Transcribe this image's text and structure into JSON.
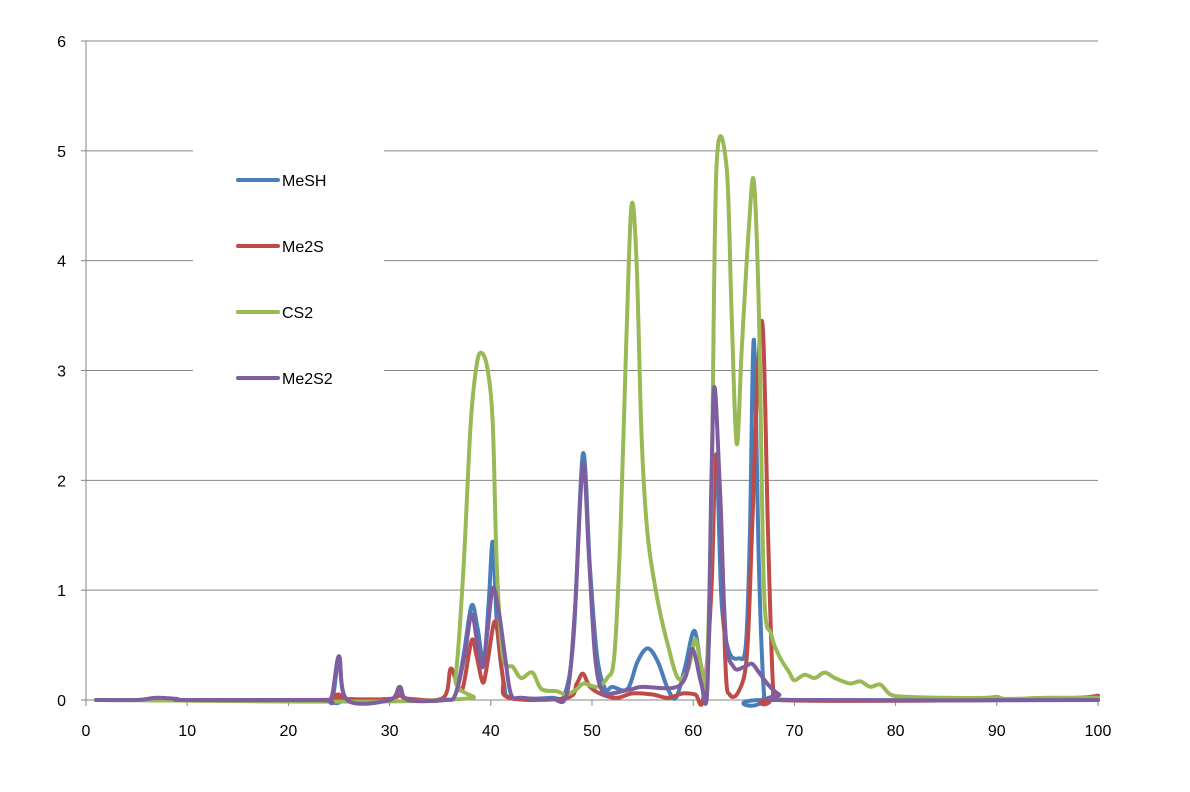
{
  "chart_data": {
    "type": "line",
    "title": "",
    "xlabel": "",
    "ylabel": "",
    "xlim": [
      0,
      100
    ],
    "ylim": [
      0,
      6
    ],
    "x_ticks": [
      0,
      10,
      20,
      30,
      40,
      50,
      60,
      70,
      80,
      90,
      100
    ],
    "y_ticks": [
      0,
      1,
      2,
      3,
      4,
      5,
      6
    ],
    "grid": "horizontal",
    "legend_position": "upper-left inside plot",
    "series": [
      {
        "name": "MeSH",
        "color": "#4a7ebb",
        "points": [
          [
            1,
            0
          ],
          [
            23,
            0
          ],
          [
            24.3,
            0
          ],
          [
            25,
            0.38
          ],
          [
            25.8,
            0
          ],
          [
            30,
            0
          ],
          [
            31,
            0.1
          ],
          [
            31.7,
            0
          ],
          [
            35.5,
            0
          ],
          [
            36.5,
            0.05
          ],
          [
            37.3,
            0.4
          ],
          [
            38.1,
            0.86
          ],
          [
            38.7,
            0.65
          ],
          [
            39.3,
            0.35
          ],
          [
            39.8,
            0.9
          ],
          [
            40.2,
            1.44
          ],
          [
            40.6,
            0.7
          ],
          [
            41.3,
            0.15
          ],
          [
            42,
            0.02
          ],
          [
            46,
            0.02
          ],
          [
            47.3,
            0.05
          ],
          [
            48.2,
            0.6
          ],
          [
            49.1,
            2.24
          ],
          [
            49.8,
            1.2
          ],
          [
            50.5,
            0.4
          ],
          [
            51.3,
            0.1
          ],
          [
            52,
            0.12
          ],
          [
            53.5,
            0.1
          ],
          [
            54.5,
            0.35
          ],
          [
            55.5,
            0.47
          ],
          [
            56.5,
            0.35
          ],
          [
            57.5,
            0.1
          ],
          [
            58.3,
            0.02
          ],
          [
            59.2,
            0.3
          ],
          [
            60.1,
            0.63
          ],
          [
            60.8,
            0.3
          ],
          [
            61.4,
            0.2
          ],
          [
            62.2,
            2.22
          ],
          [
            62.8,
            0.9
          ],
          [
            63.5,
            0.45
          ],
          [
            64.5,
            0.38
          ],
          [
            65.2,
            0.5
          ],
          [
            65.6,
            1.5
          ],
          [
            66,
            3.28
          ],
          [
            66.5,
            1.2
          ],
          [
            67,
            0.05
          ],
          [
            67.5,
            0
          ],
          [
            100,
            0
          ]
        ]
      },
      {
        "name": "Me2S",
        "color": "#be4b48",
        "points": [
          [
            1,
            0
          ],
          [
            23,
            0
          ],
          [
            24.3,
            0.03
          ],
          [
            25,
            0.05
          ],
          [
            25.8,
            0.01
          ],
          [
            30,
            0.01
          ],
          [
            31,
            0.04
          ],
          [
            32,
            0.01
          ],
          [
            35.3,
            0.02
          ],
          [
            36,
            0.28
          ],
          [
            36.5,
            0.2
          ],
          [
            37.2,
            0.1
          ],
          [
            38.1,
            0.54
          ],
          [
            38.6,
            0.4
          ],
          [
            39.2,
            0.16
          ],
          [
            39.6,
            0.3
          ],
          [
            40.3,
            0.7
          ],
          [
            40.7,
            0.6
          ],
          [
            41.2,
            0.2
          ],
          [
            41.8,
            0.02
          ],
          [
            47.5,
            0.02
          ],
          [
            48.5,
            0.15
          ],
          [
            49.1,
            0.24
          ],
          [
            49.8,
            0.12
          ],
          [
            51,
            0.05
          ],
          [
            52.5,
            0.02
          ],
          [
            54,
            0.06
          ],
          [
            56,
            0.05
          ],
          [
            57.5,
            0.02
          ],
          [
            59,
            0.06
          ],
          [
            60.2,
            0.05
          ],
          [
            61,
            0.02
          ],
          [
            61.8,
            1.0
          ],
          [
            62.2,
            2.2
          ],
          [
            62.7,
            1.8
          ],
          [
            63.2,
            0.3
          ],
          [
            63.6,
            0.05
          ],
          [
            64.5,
            0.08
          ],
          [
            65.3,
            0.4
          ],
          [
            65.8,
            1.5
          ],
          [
            66.4,
            3.0
          ],
          [
            66.9,
            3.36
          ],
          [
            67.4,
            1.5
          ],
          [
            67.9,
            0.1
          ],
          [
            68.4,
            0
          ],
          [
            90,
            0
          ],
          [
            98,
            0.02
          ],
          [
            100,
            0.04
          ]
        ]
      },
      {
        "name": "CS2",
        "color": "#98b954",
        "points": [
          [
            1,
            0
          ],
          [
            35.5,
            0
          ],
          [
            36.5,
            0.2
          ],
          [
            37.3,
            1.2
          ],
          [
            38,
            2.5
          ],
          [
            38.6,
            3.05
          ],
          [
            39.1,
            3.16
          ],
          [
            39.7,
            3.0
          ],
          [
            40.2,
            2.5
          ],
          [
            40.6,
            1.2
          ],
          [
            41.2,
            0.4
          ],
          [
            42.2,
            0.3
          ],
          [
            43,
            0.2
          ],
          [
            44.1,
            0.25
          ],
          [
            45,
            0.1
          ],
          [
            46.5,
            0.08
          ],
          [
            47.5,
            0.05
          ],
          [
            48.5,
            0.1
          ],
          [
            49.2,
            0.15
          ],
          [
            50.5,
            0.12
          ],
          [
            51.5,
            0.2
          ],
          [
            52.2,
            0.4
          ],
          [
            52.8,
            1.5
          ],
          [
            53.4,
            3.3
          ],
          [
            53.9,
            4.5
          ],
          [
            54.4,
            4.0
          ],
          [
            54.9,
            2.4
          ],
          [
            55.5,
            1.5
          ],
          [
            56.5,
            0.9
          ],
          [
            57.5,
            0.5
          ],
          [
            58.5,
            0.2
          ],
          [
            59.5,
            0.28
          ],
          [
            60.2,
            0.55
          ],
          [
            60.8,
            0.3
          ],
          [
            61.3,
            0.2
          ],
          [
            61.8,
            1.8
          ],
          [
            62.3,
            4.85
          ],
          [
            63.3,
            4.85
          ],
          [
            63.8,
            3.5
          ],
          [
            64.3,
            2.33
          ],
          [
            64.8,
            3.2
          ],
          [
            65.5,
            4.3
          ],
          [
            66,
            4.72
          ],
          [
            66.5,
            3.5
          ],
          [
            67,
            1.0
          ],
          [
            67.7,
            0.6
          ],
          [
            68.5,
            0.4
          ],
          [
            69.5,
            0.25
          ],
          [
            70,
            0.18
          ],
          [
            71,
            0.23
          ],
          [
            72,
            0.2
          ],
          [
            73,
            0.25
          ],
          [
            74,
            0.2
          ],
          [
            75.5,
            0.15
          ],
          [
            76.5,
            0.17
          ],
          [
            77.5,
            0.12
          ],
          [
            78.5,
            0.14
          ],
          [
            79.5,
            0.05
          ],
          [
            81,
            0.03
          ],
          [
            85,
            0.02
          ],
          [
            89,
            0.02
          ],
          [
            90,
            0.03
          ],
          [
            91,
            0.01
          ],
          [
            95,
            0.02
          ],
          [
            100,
            0.02
          ]
        ]
      },
      {
        "name": "Me2S2",
        "color": "#7d5fa0",
        "points": [
          [
            1,
            0
          ],
          [
            5,
            0
          ],
          [
            7,
            0.02
          ],
          [
            9,
            0.01
          ],
          [
            10,
            0
          ],
          [
            23,
            0
          ],
          [
            24.2,
            0
          ],
          [
            25,
            0.4
          ],
          [
            25.8,
            0
          ],
          [
            30,
            0
          ],
          [
            31,
            0.12
          ],
          [
            31.8,
            0
          ],
          [
            35.5,
            0
          ],
          [
            36.5,
            0.05
          ],
          [
            37.4,
            0.4
          ],
          [
            38.1,
            0.78
          ],
          [
            38.7,
            0.5
          ],
          [
            39.2,
            0.3
          ],
          [
            39.7,
            0.65
          ],
          [
            40.2,
            1.02
          ],
          [
            40.8,
            0.8
          ],
          [
            41.4,
            0.4
          ],
          [
            42,
            0.05
          ],
          [
            43,
            0.02
          ],
          [
            46,
            0.01
          ],
          [
            47.5,
            0.05
          ],
          [
            48.3,
            0.8
          ],
          [
            49.1,
            2.15
          ],
          [
            49.7,
            1.3
          ],
          [
            50.3,
            0.4
          ],
          [
            51,
            0.08
          ],
          [
            52,
            0.06
          ],
          [
            53,
            0.08
          ],
          [
            54,
            0.1
          ],
          [
            55,
            0.12
          ],
          [
            58,
            0.11
          ],
          [
            59.2,
            0.2
          ],
          [
            59.8,
            0.45
          ],
          [
            60.2,
            0.4
          ],
          [
            60.8,
            0.15
          ],
          [
            61.4,
            0.1
          ],
          [
            61.8,
            2.0
          ],
          [
            62.1,
            2.85
          ],
          [
            62.6,
            2.0
          ],
          [
            63.2,
            0.6
          ],
          [
            64,
            0.3
          ],
          [
            65,
            0.3
          ],
          [
            65.8,
            0.33
          ],
          [
            66.5,
            0.25
          ],
          [
            67.5,
            0.13
          ],
          [
            68.5,
            0.05
          ],
          [
            70,
            0
          ],
          [
            100,
            0
          ]
        ]
      }
    ]
  }
}
